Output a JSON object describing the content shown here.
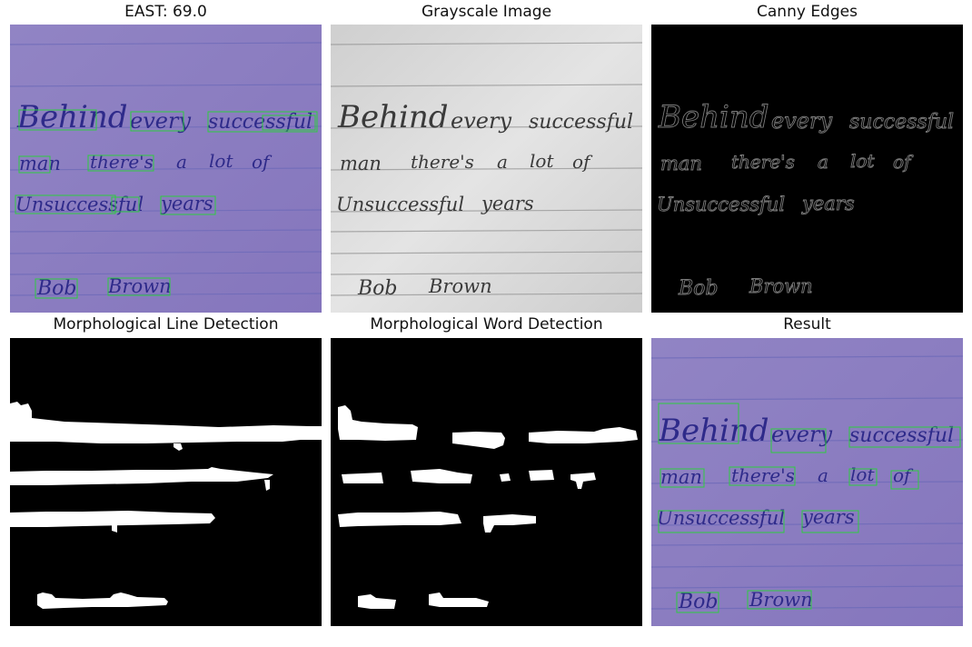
{
  "figure": {
    "panels": [
      {
        "title": "EAST: 69.0"
      },
      {
        "title": "Grayscale Image"
      },
      {
        "title": "Canny Edges"
      },
      {
        "title": "Morphological Line Detection"
      },
      {
        "title": "Morphological Word Detection"
      },
      {
        "title": "Result"
      }
    ]
  },
  "note": {
    "line1": [
      "Behind",
      "every",
      "successful"
    ],
    "line2": [
      "man",
      "there's",
      "a",
      "lot",
      "of"
    ],
    "line3": [
      "Unsuccessful",
      "years"
    ],
    "signature": [
      "Bob",
      "Brown"
    ]
  },
  "colors": {
    "paper_purple": "#8d80c0",
    "ink_purple": "#2e2a8a",
    "box_green": "#2ecc40",
    "ruled_line": "#6a68b8",
    "gray_paper": "#d9d9d9",
    "gray_ink": "#3a3a3a",
    "edge_gray": "#7a7a7a"
  }
}
